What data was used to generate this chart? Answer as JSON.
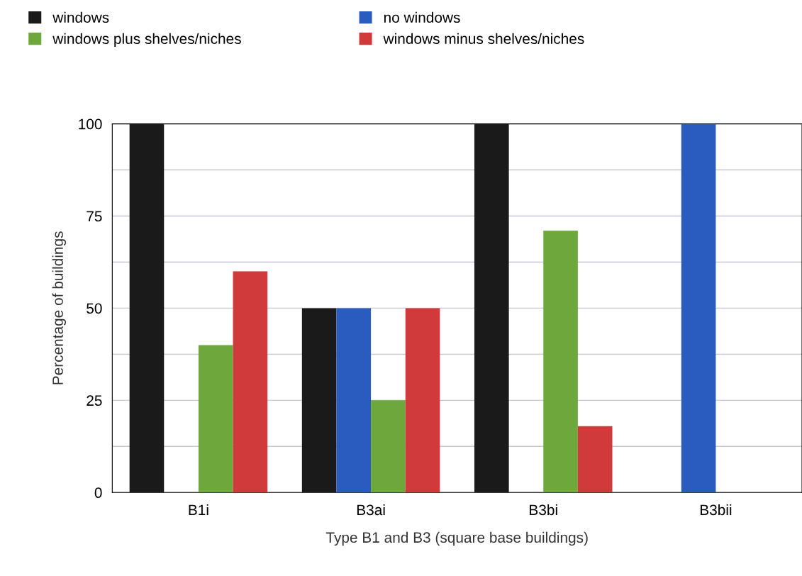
{
  "chart_data": {
    "type": "bar",
    "xlabel": "Type B1 and B3 (square base buildings)",
    "ylabel": "Percentage of buildings",
    "categories": [
      "B1i",
      "B3ai",
      "B3bi",
      "B3bii"
    ],
    "series": [
      {
        "name": "windows",
        "color": "#1a1a1a",
        "values": [
          100,
          50,
          100,
          0
        ]
      },
      {
        "name": "no windows",
        "color": "#2a5cc0",
        "values": [
          0,
          50,
          0,
          100
        ]
      },
      {
        "name": "windows plus shelves/niches",
        "color": "#6ea83c",
        "values": [
          40,
          25,
          71,
          0
        ]
      },
      {
        "name": "windows minus shelves/niches",
        "color": "#d03a3a",
        "values": [
          60,
          50,
          18,
          0
        ]
      }
    ],
    "ylim": [
      0,
      100
    ],
    "yticks": [
      0,
      {
        "value": 12.5,
        "label": null
      },
      25,
      {
        "value": 37.5,
        "label": null
      },
      50,
      {
        "value": 62.5,
        "label": null
      },
      75,
      {
        "value": 87.5,
        "label": null
      },
      100
    ],
    "grid": "y",
    "legend": "top"
  }
}
